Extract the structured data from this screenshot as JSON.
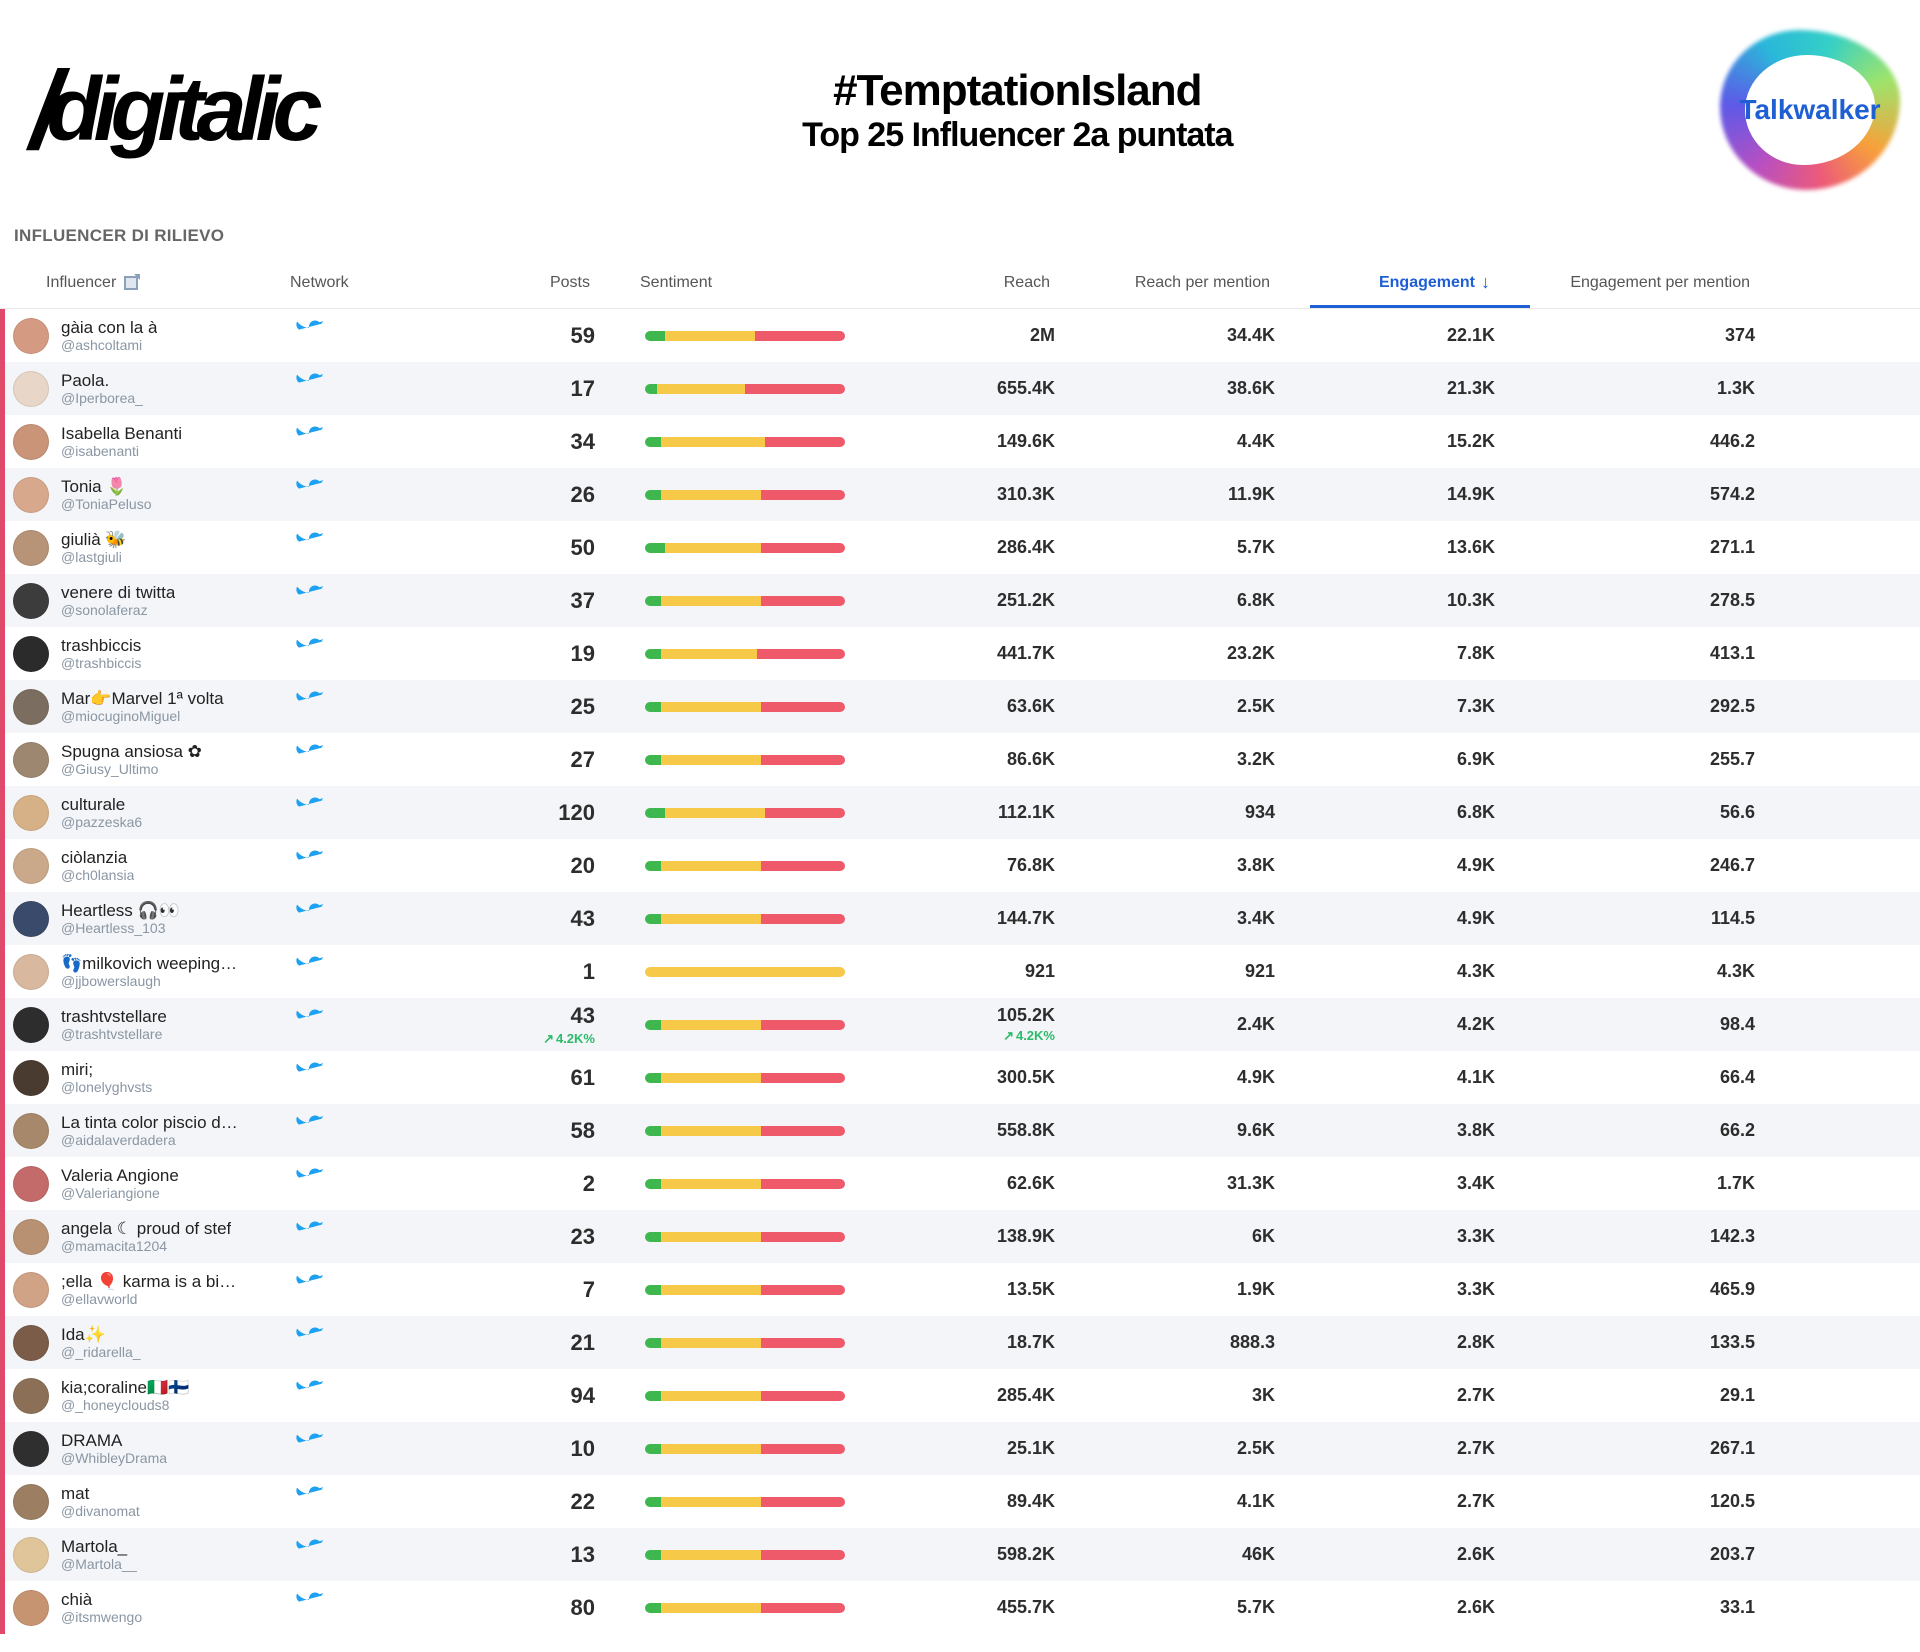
{
  "header": {
    "logo_text": "digitalic",
    "hashtag": "#TemptationIsland",
    "subtitle": "Top  25 Influencer 2a puntata",
    "partner_logo": "Talkwalker"
  },
  "section_title": "INFLUENCER DI RILIEVO",
  "columns": {
    "influencer": "Influencer",
    "network": "Network",
    "posts": "Posts",
    "sentiment": "Sentiment",
    "reach": "Reach",
    "reach_per_mention": "Reach per mention",
    "engagement": "Engagement",
    "engagement_per_mention": "Engagement per mention"
  },
  "sorted_by": "engagement",
  "sort_dir": "desc",
  "network_icon": "twitter",
  "colors": {
    "row_accent": "#e04a6a",
    "row_alt_bg": "#f3f5f8",
    "sort_active": "#1e5fd4",
    "twitter": "#1da1f2",
    "sent_green": "#3fb74f",
    "sent_yellow": "#f7c948",
    "sent_red": "#ef5a6a"
  },
  "rows": [
    {
      "name": "gàia con la à",
      "handle": "@ashcoltami",
      "posts": "59",
      "sent": [
        10,
        45,
        45
      ],
      "reach": "2M",
      "rpm": "34.4K",
      "eng": "22.1K",
      "epm": "374",
      "avatar": "#d49b82"
    },
    {
      "name": "Paola.",
      "handle": "@Iperborea_",
      "posts": "17",
      "sent": [
        6,
        44,
        50
      ],
      "reach": "655.4K",
      "rpm": "38.6K",
      "eng": "21.3K",
      "epm": "1.3K",
      "avatar": "#e8d6c8"
    },
    {
      "name": "Isabella Benanti",
      "handle": "@isabenanti",
      "posts": "34",
      "sent": [
        8,
        52,
        40
      ],
      "reach": "149.6K",
      "rpm": "4.4K",
      "eng": "15.2K",
      "epm": "446.2",
      "avatar": "#c99478"
    },
    {
      "name": "Tonia 🌷",
      "handle": "@ToniaPeluso",
      "posts": "26",
      "sent": [
        8,
        50,
        42
      ],
      "reach": "310.3K",
      "rpm": "11.9K",
      "eng": "14.9K",
      "epm": "574.2",
      "avatar": "#d8a88c"
    },
    {
      "name": "giulià 🐝",
      "handle": "@lastgiuli",
      "posts": "50",
      "sent": [
        10,
        48,
        42
      ],
      "reach": "286.4K",
      "rpm": "5.7K",
      "eng": "13.6K",
      "epm": "271.1",
      "avatar": "#b79377"
    },
    {
      "name": "venere di twitta",
      "handle": "@sonolaferaz",
      "posts": "37",
      "sent": [
        8,
        50,
        42
      ],
      "reach": "251.2K",
      "rpm": "6.8K",
      "eng": "10.3K",
      "epm": "278.5",
      "avatar": "#3c3c3c"
    },
    {
      "name": "trashbiccis",
      "handle": "@trashbiccis",
      "posts": "19",
      "sent": [
        8,
        48,
        44
      ],
      "reach": "441.7K",
      "rpm": "23.2K",
      "eng": "7.8K",
      "epm": "413.1",
      "avatar": "#2b2b2b"
    },
    {
      "name": "Mar👉Marvel 1ª volta",
      "handle": "@miocuginoMiguel",
      "posts": "25",
      "sent": [
        8,
        50,
        42
      ],
      "reach": "63.6K",
      "rpm": "2.5K",
      "eng": "7.3K",
      "epm": "292.5",
      "avatar": "#7b6e60"
    },
    {
      "name": "Spugna ansiosa ✿",
      "handle": "@Giusy_Ultimo",
      "posts": "27",
      "sent": [
        8,
        50,
        42
      ],
      "reach": "86.6K",
      "rpm": "3.2K",
      "eng": "6.9K",
      "epm": "255.7",
      "avatar": "#9e8770"
    },
    {
      "name": "culturale",
      "handle": "@pazzeska6",
      "posts": "120",
      "sent": [
        10,
        50,
        40
      ],
      "reach": "112.1K",
      "rpm": "934",
      "eng": "6.8K",
      "epm": "56.6",
      "avatar": "#d6b087"
    },
    {
      "name": "ciòlanzia",
      "handle": "@ch0lansia",
      "posts": "20",
      "sent": [
        8,
        50,
        42
      ],
      "reach": "76.8K",
      "rpm": "3.8K",
      "eng": "4.9K",
      "epm": "246.7",
      "avatar": "#caa98a"
    },
    {
      "name": "Heartless 🎧👀",
      "handle": "@Heartless_103",
      "posts": "43",
      "sent": [
        8,
        50,
        42
      ],
      "reach": "144.7K",
      "rpm": "3.4K",
      "eng": "4.9K",
      "epm": "114.5",
      "avatar": "#3a4a6a"
    },
    {
      "name": "👣milkovich weeping…",
      "handle": "@jjbowerslaugh",
      "posts": "1",
      "sent": [
        0,
        100,
        0
      ],
      "reach": "921",
      "rpm": "921",
      "eng": "4.3K",
      "epm": "4.3K",
      "avatar": "#d9b8a0"
    },
    {
      "name": "trashtvstellare",
      "handle": "@trashtvstellare",
      "posts": "43",
      "posts_delta": "4.2K%",
      "sent": [
        8,
        50,
        42
      ],
      "reach": "105.2K",
      "reach_delta": "4.2K%",
      "rpm": "2.4K",
      "eng": "4.2K",
      "epm": "98.4",
      "avatar": "#2d2d2d"
    },
    {
      "name": "miri;",
      "handle": "@lonelyghvsts",
      "posts": "61",
      "sent": [
        8,
        50,
        42
      ],
      "reach": "300.5K",
      "rpm": "4.9K",
      "eng": "4.1K",
      "epm": "66.4",
      "avatar": "#4a3b31"
    },
    {
      "name": "La tinta color piscio d…",
      "handle": "@aidalaverdadera",
      "posts": "58",
      "sent": [
        8,
        50,
        42
      ],
      "reach": "558.8K",
      "rpm": "9.6K",
      "eng": "3.8K",
      "epm": "66.2",
      "avatar": "#a8886a"
    },
    {
      "name": "Valeria Angione",
      "handle": "@Valeriangione",
      "posts": "2",
      "sent": [
        8,
        50,
        42
      ],
      "reach": "62.6K",
      "rpm": "31.3K",
      "eng": "3.4K",
      "epm": "1.7K",
      "avatar": "#c36b6b"
    },
    {
      "name": "angela ☾ proud of stef",
      "handle": "@mamacita1204",
      "posts": "23",
      "sent": [
        8,
        50,
        42
      ],
      "reach": "138.9K",
      "rpm": "6K",
      "eng": "3.3K",
      "epm": "142.3",
      "avatar": "#b79171"
    },
    {
      "name": ";ella 🎈 karma is a bi…",
      "handle": "@ellavworld",
      "posts": "7",
      "sent": [
        8,
        50,
        42
      ],
      "reach": "13.5K",
      "rpm": "1.9K",
      "eng": "3.3K",
      "epm": "465.9",
      "avatar": "#d0a286"
    },
    {
      "name": "Ida✨",
      "handle": "@_ridarella_",
      "posts": "21",
      "sent": [
        8,
        50,
        42
      ],
      "reach": "18.7K",
      "rpm": "888.3",
      "eng": "2.8K",
      "epm": "133.5",
      "avatar": "#7a5c48"
    },
    {
      "name": "kia;coraline🇮🇹🇫🇮",
      "handle": "@_honeyclouds8",
      "posts": "94",
      "sent": [
        8,
        50,
        42
      ],
      "reach": "285.4K",
      "rpm": "3K",
      "eng": "2.7K",
      "epm": "29.1",
      "avatar": "#8c6f57"
    },
    {
      "name": "DRAMA",
      "handle": "@WhibleyDrama",
      "posts": "10",
      "sent": [
        8,
        50,
        42
      ],
      "reach": "25.1K",
      "rpm": "2.5K",
      "eng": "2.7K",
      "epm": "267.1",
      "avatar": "#2f2f2f"
    },
    {
      "name": "mat",
      "handle": "@divanomat",
      "posts": "22",
      "sent": [
        8,
        50,
        42
      ],
      "reach": "89.4K",
      "rpm": "4.1K",
      "eng": "2.7K",
      "epm": "120.5",
      "avatar": "#9c7e63"
    },
    {
      "name": "Martola_",
      "handle": "@Martola__",
      "posts": "13",
      "sent": [
        8,
        50,
        42
      ],
      "reach": "598.2K",
      "rpm": "46K",
      "eng": "2.6K",
      "epm": "203.7",
      "avatar": "#e0c49a"
    },
    {
      "name": "chià",
      "handle": "@itsmwengo",
      "posts": "80",
      "sent": [
        8,
        50,
        42
      ],
      "reach": "455.7K",
      "rpm": "5.7K",
      "eng": "2.6K",
      "epm": "33.1",
      "avatar": "#c79471"
    }
  ]
}
